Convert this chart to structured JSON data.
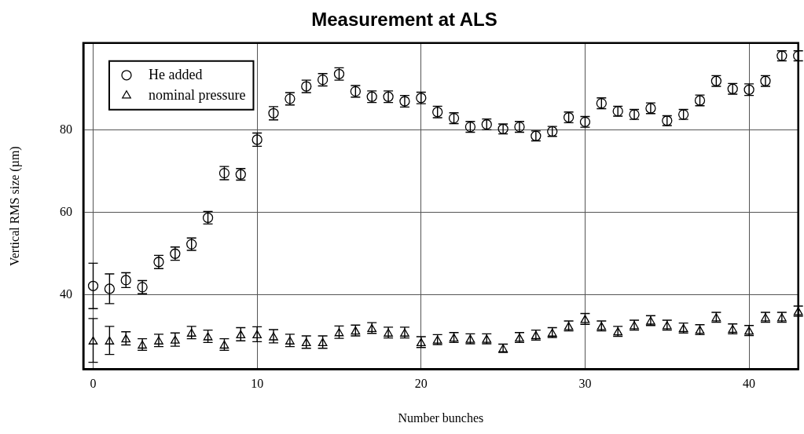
{
  "chart_data": {
    "type": "scatter",
    "title": "Measurement at ALS",
    "xlabel": "Number bunches",
    "ylabel": "Vertical RMS size (µm)",
    "x": [
      0,
      1,
      2,
      3,
      4,
      5,
      6,
      7,
      8,
      9,
      10,
      11,
      12,
      13,
      14,
      15,
      16,
      17,
      18,
      19,
      20,
      21,
      22,
      23,
      24,
      25,
      26,
      27,
      28,
      29,
      30,
      31,
      32,
      33,
      34,
      35,
      36,
      37,
      38,
      39,
      40,
      41,
      42,
      43
    ],
    "series": [
      {
        "name": "He added",
        "color": "#000000",
        "marker": "circle",
        "values": [
          42.2,
          41.5,
          43.6,
          41.9,
          48,
          50,
          52.3,
          58.7,
          69.5,
          69.2,
          77.6,
          84,
          87.5,
          90.5,
          92.1,
          93.5,
          89.3,
          88,
          88,
          86.9,
          87.7,
          84.3,
          82.8,
          80.7,
          81.3,
          80.2,
          80.7,
          78.5,
          79.6,
          83,
          81.9,
          86.4,
          84.5,
          83.7,
          85.2,
          82.2,
          83.7,
          87.1,
          91.8,
          89.9,
          89.7,
          91.8,
          97.9,
          97.9
        ],
        "errors": [
          5.5,
          3.6,
          1.8,
          1.6,
          1.6,
          1.6,
          1.5,
          1.5,
          1.6,
          1.4,
          1.6,
          1.6,
          1.5,
          1.5,
          1.5,
          1.5,
          1.4,
          1.4,
          1.4,
          1.4,
          1.4,
          1.4,
          1.3,
          1.3,
          1.3,
          1.2,
          1.3,
          1.2,
          1.2,
          1.3,
          1.3,
          1.3,
          1.2,
          1.2,
          1.3,
          1.2,
          1.2,
          1.3,
          1.3,
          1.3,
          1.4,
          1.3,
          1.2,
          1.2
        ]
      },
      {
        "name": "nominal pressure",
        "color": "#000000",
        "marker": "triangle",
        "values": [
          29,
          29,
          29.5,
          28,
          29,
          29.2,
          30.9,
          30,
          28,
          30.5,
          30.5,
          30,
          29,
          28.6,
          28.6,
          31,
          31.4,
          32,
          30.9,
          30.9,
          28.6,
          29.2,
          29.7,
          29.4,
          29.4,
          27.1,
          29.7,
          30.3,
          30.9,
          32.5,
          34.2,
          32.5,
          31.2,
          32.7,
          33.8,
          32.7,
          32,
          31.6,
          34.6,
          31.8,
          31.4,
          34.6,
          34.6,
          36.1
        ],
        "errors": [
          5.3,
          3.4,
          1.6,
          1.4,
          1.5,
          1.6,
          1.5,
          1.5,
          1.4,
          1.6,
          1.8,
          1.6,
          1.5,
          1.5,
          1.5,
          1.5,
          1.3,
          1.3,
          1.3,
          1.3,
          1.3,
          1.2,
          1.2,
          1.2,
          1.2,
          1,
          1.2,
          1.2,
          1.2,
          1.2,
          1.3,
          1.2,
          1.2,
          1.2,
          1.2,
          1.2,
          1.2,
          1.2,
          1.2,
          1.2,
          1.2,
          1.2,
          1.2,
          1.2
        ]
      }
    ],
    "xlim": [
      -0.6,
      43
    ],
    "ylim": [
      22,
      101
    ],
    "xticks": [
      0,
      10,
      20,
      30,
      40
    ],
    "yticks": [
      40,
      60,
      80
    ],
    "grid": true,
    "legend": "top left"
  }
}
